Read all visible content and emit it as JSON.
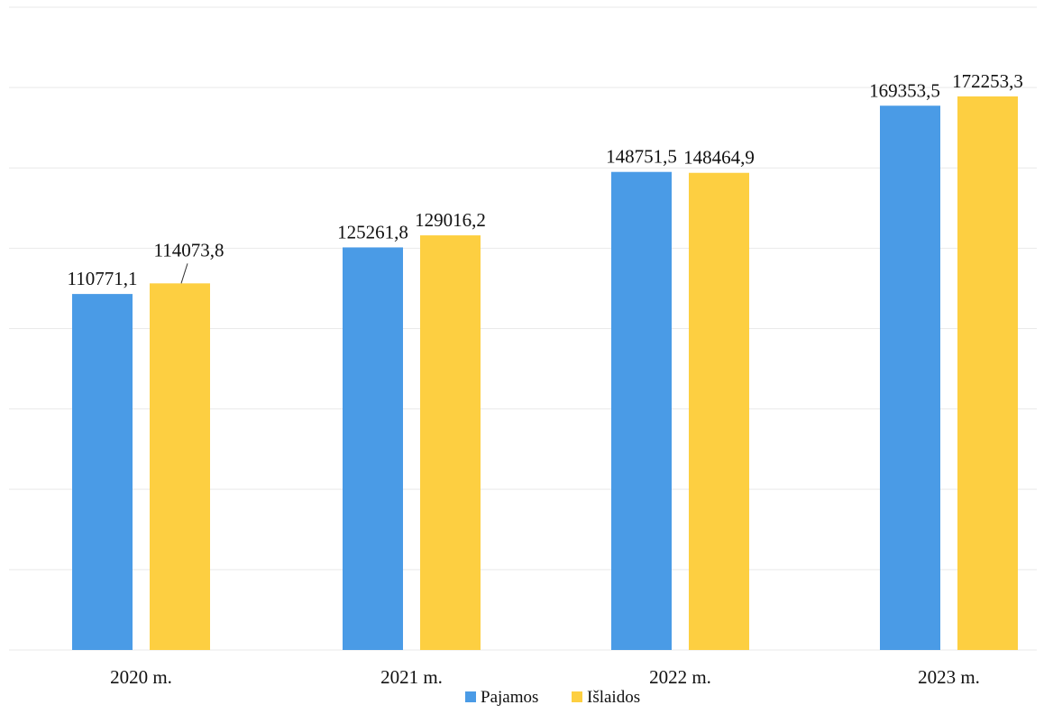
{
  "chart_data": {
    "type": "bar",
    "categories": [
      "2020 m.",
      "2021 m.",
      "2022 m.",
      "2023 m."
    ],
    "series": [
      {
        "name": "Pajamos",
        "color": "#4a9be6",
        "values": [
          110771.1,
          125261.8,
          148751.5,
          169353.5
        ],
        "labels": [
          "110771,1",
          "125261,8",
          "148751,5",
          "169353,5"
        ]
      },
      {
        "name": "Išlaidos",
        "color": "#fdcf41",
        "values": [
          114073.8,
          129016.2,
          148464.9,
          172253.3
        ],
        "labels": [
          "114073,8",
          "129016,2",
          "148464,9",
          "172253,3"
        ]
      }
    ],
    "ylim": [
      0,
      200000
    ],
    "grid": true,
    "legend": "bottom-center",
    "title": "",
    "xlabel": "",
    "ylabel": ""
  }
}
